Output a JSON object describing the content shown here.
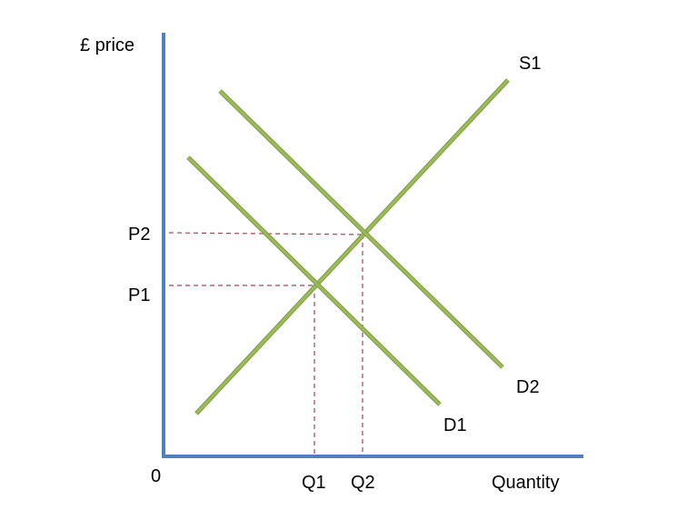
{
  "diagram": {
    "y_axis_label": "£ price",
    "x_axis_label": "Quantity",
    "origin_label": "0",
    "axis_color": "#4f81bd",
    "curve_color": "#9bbb59",
    "guide_color": "#9c4a5a",
    "curves": {
      "supply": "S1",
      "demand_original": "D1",
      "demand_shifted": "D2"
    },
    "prices": [
      "P1",
      "P2"
    ],
    "quantities": [
      "Q1",
      "Q2"
    ]
  }
}
